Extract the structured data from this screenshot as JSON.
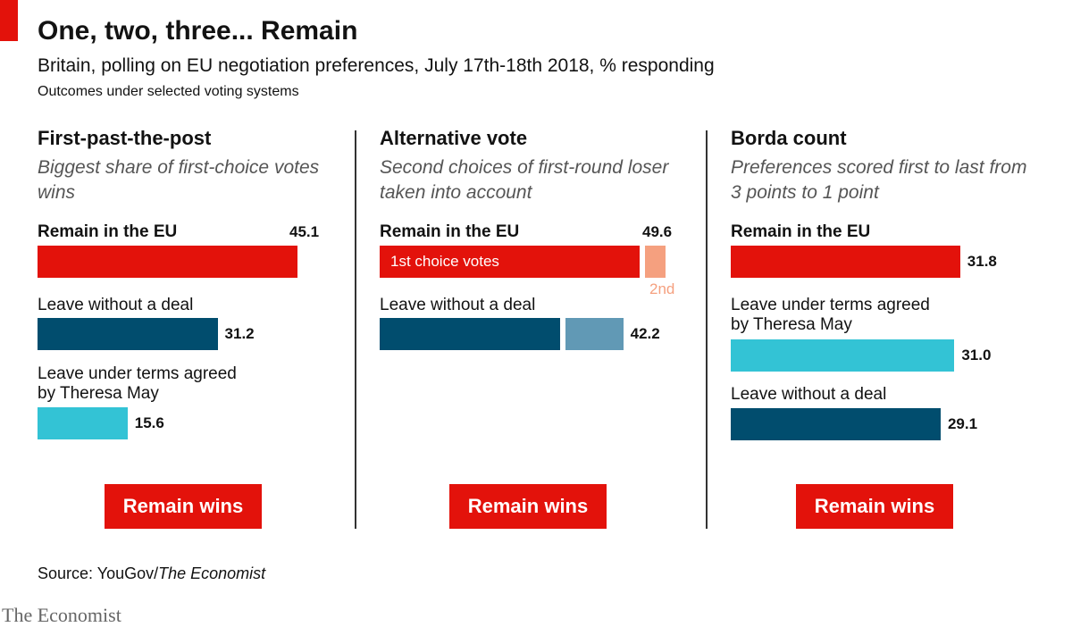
{
  "header": {
    "title": "One, two, three... Remain",
    "subtitle": "Britain, polling on EU negotiation preferences, July 17th-18th 2018, % responding",
    "note": "Outcomes under selected voting systems"
  },
  "colors": {
    "remain": "#e3120b",
    "leave_no_deal": "#014d6e",
    "leave_may": "#33c3d5",
    "second_choice_remain": "#f5a07f",
    "second_choice_no_deal": "#6199b5"
  },
  "chart_data": [
    {
      "type": "bar",
      "title": "First-past-the-post",
      "description": "Biggest share of first-choice votes wins",
      "categories": [
        "Remain in the EU",
        "Leave without a deal",
        "Leave under terms agreed by Theresa May"
      ],
      "values": [
        45.1,
        31.2,
        15.6
      ],
      "value_labels": [
        "45.1",
        "31.2",
        "15.6"
      ],
      "xlim": [
        0,
        50
      ],
      "result": "Remain wins"
    },
    {
      "type": "bar",
      "title": "Alternative vote",
      "description": "Second choices of first-round loser taken into account",
      "categories": [
        "Remain in the EU",
        "Leave without a deal"
      ],
      "series": [
        {
          "name": "1st choice votes",
          "values": [
            45.1,
            31.2
          ]
        },
        {
          "name": "2nd",
          "values": [
            4.5,
            11.0
          ]
        }
      ],
      "totals": [
        49.6,
        42.2
      ],
      "value_labels": [
        "49.6",
        "42.2"
      ],
      "xlim": [
        0,
        50
      ],
      "result": "Remain wins"
    },
    {
      "type": "bar",
      "title": "Borda count",
      "description": "Preferences scored first to last from 3 points to 1 point",
      "categories": [
        "Remain in the EU",
        "Leave under terms agreed by Theresa May",
        "Leave without a deal"
      ],
      "values": [
        31.8,
        31.0,
        29.1
      ],
      "value_labels": [
        "31.8",
        "31.0",
        "29.1"
      ],
      "xlim": [
        0,
        40
      ],
      "result": "Remain wins"
    }
  ],
  "source": {
    "prefix": "Source: YouGov/",
    "publication": "The Economist"
  },
  "logo": "The Economist"
}
